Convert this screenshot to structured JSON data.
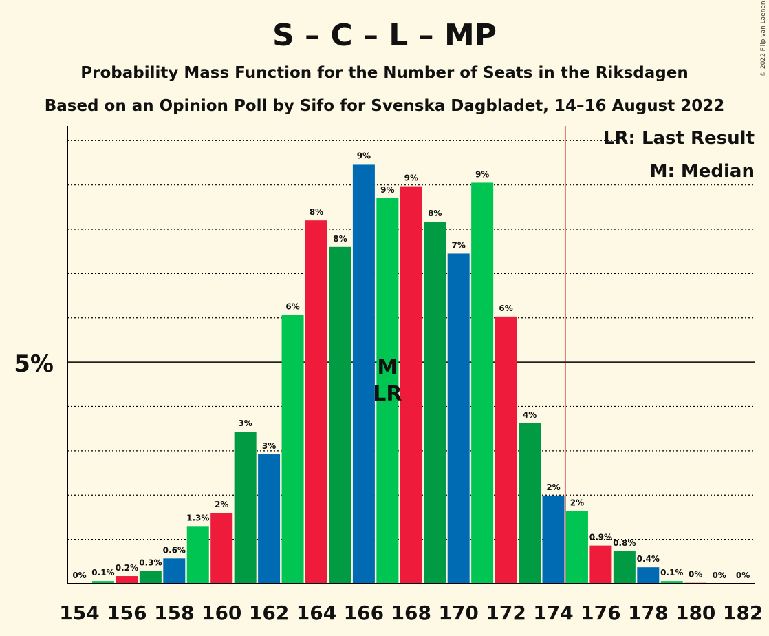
{
  "chart_data": {
    "type": "bar",
    "title": "S – C – L – MP",
    "subtitle": "Probability Mass Function for the Number of Seats in the Riksdagen",
    "subtitle2": "Based on an Opinion Poll by Sifo for Svenska Dagbladet, 14–16 August 2022",
    "copyright": "© 2022 Filip van Laenen",
    "xlabel": "",
    "ylabel": "",
    "x_ticks": [
      "154",
      "156",
      "158",
      "160",
      "162",
      "164",
      "166",
      "168",
      "170",
      "172",
      "174",
      "176",
      "178",
      "180",
      "182"
    ],
    "y_tick_label": "5%",
    "y_tick_value": 5,
    "ylim": [
      0,
      10.3
    ],
    "grid": "dotted horizontal lines every 1%",
    "legend": {
      "placement": "top-right",
      "lr": "LR: Last Result",
      "m": "M: Median"
    },
    "markers": {
      "median_seat": 167,
      "median_label": "M",
      "last_result_seat": 167,
      "last_result_label": "LR",
      "majority_line_seat": 175
    },
    "colors": {
      "S": "#ee1c3a",
      "C": "#009b42",
      "L": "#006ab3",
      "MP": "#00c552",
      "majority_line": "#c00000",
      "axis": "#000000",
      "background": "#fdf9e4"
    },
    "bars": [
      {
        "seat": 154,
        "value": 0.0,
        "label": "0%",
        "color": "#009b42"
      },
      {
        "seat": 155,
        "value": 0.06,
        "label": "0.1%",
        "color": "#00c552"
      },
      {
        "seat": 156,
        "value": 0.17,
        "label": "0.2%",
        "color": "#ee1c3a"
      },
      {
        "seat": 157,
        "value": 0.29,
        "label": "0.3%",
        "color": "#009b42"
      },
      {
        "seat": 158,
        "value": 0.57,
        "label": "0.6%",
        "color": "#006ab3"
      },
      {
        "seat": 159,
        "value": 1.3,
        "label": "1.3%",
        "color": "#00c552"
      },
      {
        "seat": 160,
        "value": 1.6,
        "label": "2%",
        "color": "#ee1c3a"
      },
      {
        "seat": 161,
        "value": 3.43,
        "label": "3%",
        "color": "#009b42"
      },
      {
        "seat": 162,
        "value": 2.92,
        "label": "3%",
        "color": "#006ab3"
      },
      {
        "seat": 163,
        "value": 6.07,
        "label": "6%",
        "color": "#00c552"
      },
      {
        "seat": 164,
        "value": 8.2,
        "label": "8%",
        "color": "#ee1c3a"
      },
      {
        "seat": 165,
        "value": 7.6,
        "label": "8%",
        "color": "#009b42"
      },
      {
        "seat": 166,
        "value": 9.47,
        "label": "9%",
        "color": "#006ab3"
      },
      {
        "seat": 167,
        "value": 8.7,
        "label": "9%",
        "color": "#00c552"
      },
      {
        "seat": 168,
        "value": 8.97,
        "label": "9%",
        "color": "#ee1c3a"
      },
      {
        "seat": 169,
        "value": 8.17,
        "label": "8%",
        "color": "#009b42"
      },
      {
        "seat": 170,
        "value": 7.45,
        "label": "7%",
        "color": "#006ab3"
      },
      {
        "seat": 171,
        "value": 9.05,
        "label": "9%",
        "color": "#00c552"
      },
      {
        "seat": 172,
        "value": 6.03,
        "label": "6%",
        "color": "#ee1c3a"
      },
      {
        "seat": 173,
        "value": 3.62,
        "label": "4%",
        "color": "#009b42"
      },
      {
        "seat": 174,
        "value": 1.99,
        "label": "2%",
        "color": "#006ab3"
      },
      {
        "seat": 175,
        "value": 1.64,
        "label": "2%",
        "color": "#00c552"
      },
      {
        "seat": 176,
        "value": 0.86,
        "label": "0.9%",
        "color": "#ee1c3a"
      },
      {
        "seat": 177,
        "value": 0.73,
        "label": "0.8%",
        "color": "#009b42"
      },
      {
        "seat": 178,
        "value": 0.37,
        "label": "0.4%",
        "color": "#006ab3"
      },
      {
        "seat": 179,
        "value": 0.06,
        "label": "0.1%",
        "color": "#00c552"
      },
      {
        "seat": 180,
        "value": 0.02,
        "label": "0%",
        "color": "#ee1c3a"
      },
      {
        "seat": 181,
        "value": 0.0,
        "label": "0%",
        "color": "#009b42"
      },
      {
        "seat": 182,
        "value": 0.0,
        "label": "0%",
        "color": "#006ab3"
      }
    ]
  }
}
